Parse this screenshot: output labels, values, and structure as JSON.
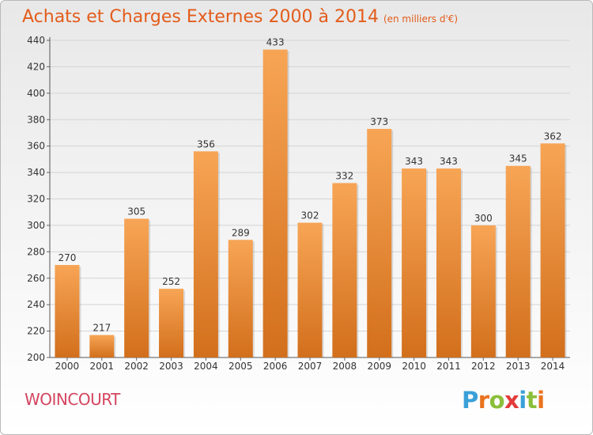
{
  "title": "Achats et Charges Externes 2000 à 2014",
  "unit": "(en milliers d'€)",
  "commune": "WOINCOURT",
  "brand": "Proxiti",
  "colors": {
    "title": "#e35c1b",
    "commune": "#d3455f",
    "bar_light": "#f7a555",
    "bar_dark": "#d26f1c",
    "brand_letters": [
      "#3aa0d8",
      "#e9731f",
      "#8bbf3a",
      "#e23b3b",
      "#3aa0d8",
      "#8bbf3a",
      "#e9731f"
    ]
  },
  "chart_data": {
    "type": "bar",
    "categories": [
      "2000",
      "2001",
      "2002",
      "2003",
      "2004",
      "2005",
      "2006",
      "2007",
      "2008",
      "2009",
      "2010",
      "2011",
      "2012",
      "2013",
      "2014"
    ],
    "values": [
      270,
      217,
      305,
      252,
      356,
      289,
      433,
      302,
      332,
      373,
      343,
      343,
      300,
      345,
      362
    ],
    "ylim": [
      200,
      440
    ],
    "yticks": [
      200,
      220,
      240,
      260,
      280,
      300,
      320,
      340,
      360,
      380,
      400,
      420,
      440
    ],
    "grid": true,
    "data_labels": true
  }
}
